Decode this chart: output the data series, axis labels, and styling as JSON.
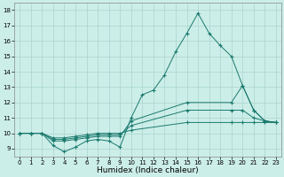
{
  "title": "",
  "xlabel": "Humidex (Indice chaleur)",
  "bg_color": "#cceee8",
  "grid_color": "#aad4ce",
  "line_color": "#1a7a6e",
  "xlim": [
    -0.5,
    23.5
  ],
  "ylim": [
    8.5,
    18.5
  ],
  "xticks": [
    0,
    1,
    2,
    3,
    4,
    5,
    6,
    7,
    8,
    9,
    10,
    11,
    12,
    13,
    14,
    15,
    16,
    17,
    18,
    19,
    20,
    21,
    22,
    23
  ],
  "yticks": [
    9,
    10,
    11,
    12,
    13,
    14,
    15,
    16,
    17,
    18
  ],
  "series1": [
    [
      0,
      10
    ],
    [
      1,
      10
    ],
    [
      2,
      10
    ],
    [
      3,
      9.2
    ],
    [
      4,
      8.8
    ],
    [
      5,
      9.1
    ],
    [
      6,
      9.5
    ],
    [
      7,
      9.6
    ],
    [
      8,
      9.5
    ],
    [
      9,
      9.1
    ],
    [
      10,
      11.0
    ],
    [
      11,
      12.5
    ],
    [
      12,
      12.8
    ],
    [
      13,
      13.8
    ],
    [
      14,
      15.3
    ],
    [
      15,
      16.5
    ],
    [
      16,
      17.8
    ],
    [
      17,
      16.5
    ],
    [
      18,
      15.7
    ],
    [
      19,
      15.0
    ],
    [
      20,
      13.1
    ],
    [
      21,
      11.5
    ],
    [
      22,
      10.8
    ],
    [
      23,
      10.7
    ]
  ],
  "series2": [
    [
      0,
      10
    ],
    [
      1,
      10
    ],
    [
      2,
      10
    ],
    [
      3,
      9.5
    ],
    [
      4,
      9.5
    ],
    [
      5,
      9.6
    ],
    [
      6,
      9.7
    ],
    [
      7,
      9.8
    ],
    [
      8,
      9.8
    ],
    [
      9,
      9.8
    ],
    [
      10,
      10.8
    ],
    [
      15,
      12.0
    ],
    [
      19,
      12.0
    ],
    [
      20,
      13.1
    ],
    [
      21,
      11.5
    ],
    [
      22,
      10.8
    ],
    [
      23,
      10.7
    ]
  ],
  "series3": [
    [
      0,
      10
    ],
    [
      1,
      10
    ],
    [
      2,
      10
    ],
    [
      3,
      9.6
    ],
    [
      4,
      9.6
    ],
    [
      5,
      9.7
    ],
    [
      6,
      9.8
    ],
    [
      7,
      9.9
    ],
    [
      8,
      9.9
    ],
    [
      9,
      9.9
    ],
    [
      10,
      10.5
    ],
    [
      15,
      11.5
    ],
    [
      19,
      11.5
    ],
    [
      20,
      11.5
    ],
    [
      21,
      11.0
    ],
    [
      22,
      10.8
    ],
    [
      23,
      10.7
    ]
  ],
  "series4": [
    [
      0,
      10
    ],
    [
      1,
      10
    ],
    [
      2,
      10
    ],
    [
      3,
      9.7
    ],
    [
      4,
      9.7
    ],
    [
      5,
      9.8
    ],
    [
      6,
      9.9
    ],
    [
      7,
      10.0
    ],
    [
      8,
      10.0
    ],
    [
      9,
      10.0
    ],
    [
      10,
      10.2
    ],
    [
      15,
      10.7
    ],
    [
      19,
      10.7
    ],
    [
      20,
      10.7
    ],
    [
      21,
      10.7
    ],
    [
      22,
      10.7
    ],
    [
      23,
      10.7
    ]
  ]
}
